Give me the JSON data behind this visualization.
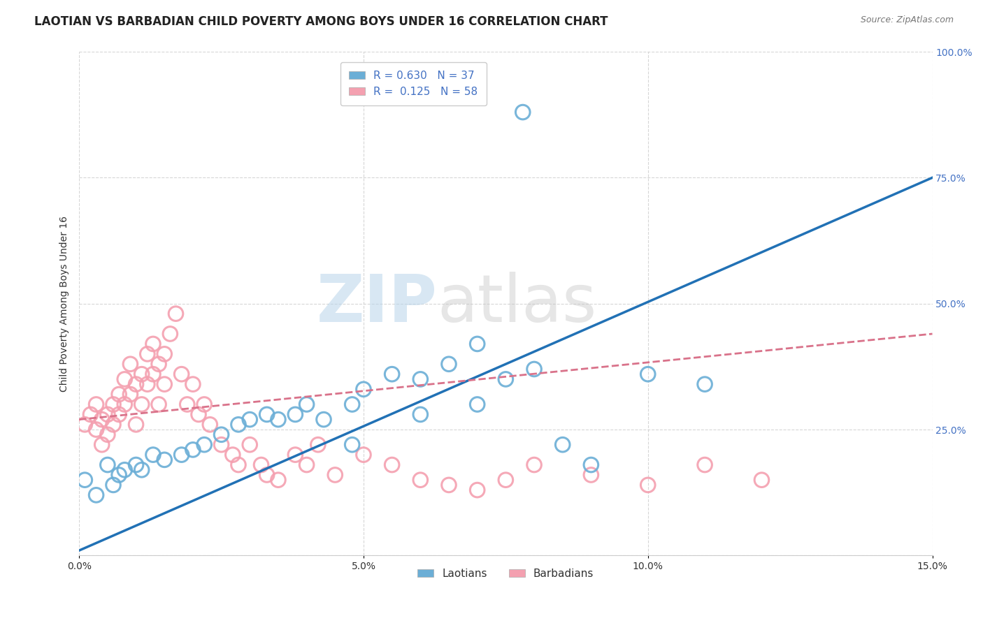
{
  "title": "LAOTIAN VS BARBADIAN CHILD POVERTY AMONG BOYS UNDER 16 CORRELATION CHART",
  "source": "Source: ZipAtlas.com",
  "ylabel": "Child Poverty Among Boys Under 16",
  "xlabel": "",
  "xlim": [
    0.0,
    0.15
  ],
  "ylim": [
    0.0,
    1.0
  ],
  "xticks": [
    0.0,
    0.05,
    0.1,
    0.15
  ],
  "xtick_labels": [
    "0.0%",
    "5.0%",
    "10.0%",
    "15.0%"
  ],
  "yticks": [
    0.0,
    0.25,
    0.5,
    0.75,
    1.0
  ],
  "ytick_labels": [
    "",
    "25.0%",
    "50.0%",
    "75.0%",
    "100.0%"
  ],
  "watermark_zip": "ZIP",
  "watermark_atlas": "atlas",
  "laotian_color": "#6baed6",
  "barbadian_color": "#f4a0b0",
  "laotian_R": 0.63,
  "laotian_N": 37,
  "barbadian_R": 0.125,
  "barbadian_N": 58,
  "blue_line_x0": 0.0,
  "blue_line_y0": 0.01,
  "blue_line_x1": 0.15,
  "blue_line_y1": 0.75,
  "pink_line_x0": 0.0,
  "pink_line_y0": 0.27,
  "pink_line_x1": 0.15,
  "pink_line_y1": 0.44,
  "laotian_scatter_x": [
    0.001,
    0.003,
    0.005,
    0.006,
    0.007,
    0.008,
    0.01,
    0.011,
    0.013,
    0.015,
    0.018,
    0.02,
    0.022,
    0.025,
    0.028,
    0.03,
    0.033,
    0.035,
    0.038,
    0.04,
    0.043,
    0.048,
    0.05,
    0.055,
    0.06,
    0.065,
    0.07,
    0.075,
    0.08,
    0.09,
    0.048,
    0.06,
    0.07,
    0.085,
    0.1,
    0.11,
    0.078
  ],
  "laotian_scatter_y": [
    0.15,
    0.12,
    0.18,
    0.14,
    0.16,
    0.17,
    0.18,
    0.17,
    0.2,
    0.19,
    0.2,
    0.21,
    0.22,
    0.24,
    0.26,
    0.27,
    0.28,
    0.27,
    0.28,
    0.3,
    0.27,
    0.3,
    0.33,
    0.36,
    0.35,
    0.38,
    0.42,
    0.35,
    0.37,
    0.18,
    0.22,
    0.28,
    0.3,
    0.22,
    0.36,
    0.34,
    0.88
  ],
  "barbadian_scatter_x": [
    0.001,
    0.002,
    0.003,
    0.003,
    0.004,
    0.004,
    0.005,
    0.005,
    0.006,
    0.006,
    0.007,
    0.007,
    0.008,
    0.008,
    0.009,
    0.009,
    0.01,
    0.01,
    0.011,
    0.011,
    0.012,
    0.012,
    0.013,
    0.013,
    0.014,
    0.014,
    0.015,
    0.015,
    0.016,
    0.017,
    0.018,
    0.019,
    0.02,
    0.021,
    0.022,
    0.023,
    0.025,
    0.027,
    0.028,
    0.03,
    0.032,
    0.033,
    0.035,
    0.038,
    0.04,
    0.042,
    0.045,
    0.05,
    0.055,
    0.06,
    0.065,
    0.07,
    0.075,
    0.08,
    0.09,
    0.1,
    0.11,
    0.12
  ],
  "barbadian_scatter_y": [
    0.26,
    0.28,
    0.25,
    0.3,
    0.22,
    0.27,
    0.24,
    0.28,
    0.3,
    0.26,
    0.32,
    0.28,
    0.35,
    0.3,
    0.38,
    0.32,
    0.34,
    0.26,
    0.36,
    0.3,
    0.4,
    0.34,
    0.42,
    0.36,
    0.38,
    0.3,
    0.4,
    0.34,
    0.44,
    0.48,
    0.36,
    0.3,
    0.34,
    0.28,
    0.3,
    0.26,
    0.22,
    0.2,
    0.18,
    0.22,
    0.18,
    0.16,
    0.15,
    0.2,
    0.18,
    0.22,
    0.16,
    0.2,
    0.18,
    0.15,
    0.14,
    0.13,
    0.15,
    0.18,
    0.16,
    0.14,
    0.18,
    0.15
  ],
  "blue_line_color": "#2171b5",
  "pink_line_color": "#d9728a",
  "grid_color": "#cccccc",
  "bg_color": "#ffffff",
  "title_fontsize": 12,
  "axis_label_fontsize": 10,
  "tick_fontsize": 10,
  "legend_fontsize": 11,
  "source_fontsize": 9
}
